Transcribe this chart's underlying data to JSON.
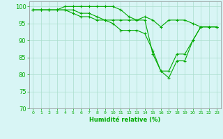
{
  "xlabel": "Humidité relative (%)",
  "background_color": "#d8f5f5",
  "grid_color": "#aaddcc",
  "line_color": "#00aa00",
  "xlim": [
    -0.5,
    23.5
  ],
  "ylim": [
    70,
    101.5
  ],
  "yticks": [
    70,
    75,
    80,
    85,
    90,
    95,
    100
  ],
  "xticks": [
    0,
    1,
    2,
    3,
    4,
    5,
    6,
    7,
    8,
    9,
    10,
    11,
    12,
    13,
    14,
    15,
    16,
    17,
    18,
    19,
    20,
    21,
    22,
    23
  ],
  "series": [
    [
      99,
      99,
      99,
      99,
      100,
      100,
      100,
      100,
      100,
      100,
      100,
      99,
      97,
      96,
      97,
      96,
      94,
      96,
      96,
      96,
      95,
      94,
      94,
      94
    ],
    [
      99,
      99,
      99,
      99,
      99,
      99,
      98,
      98,
      97,
      96,
      95,
      93,
      93,
      93,
      92,
      87,
      81,
      81,
      86,
      86,
      90,
      94,
      94,
      94
    ],
    [
      99,
      99,
      99,
      99,
      99,
      98,
      97,
      97,
      96,
      96,
      96,
      96,
      96,
      96,
      96,
      86,
      81,
      79,
      84,
      84,
      90,
      94,
      94,
      94
    ]
  ],
  "xlabel_fontsize": 6,
  "ytick_fontsize": 6,
  "xtick_fontsize": 4.5,
  "linewidth": 0.8,
  "markersize": 3,
  "spine_color": "#888888"
}
